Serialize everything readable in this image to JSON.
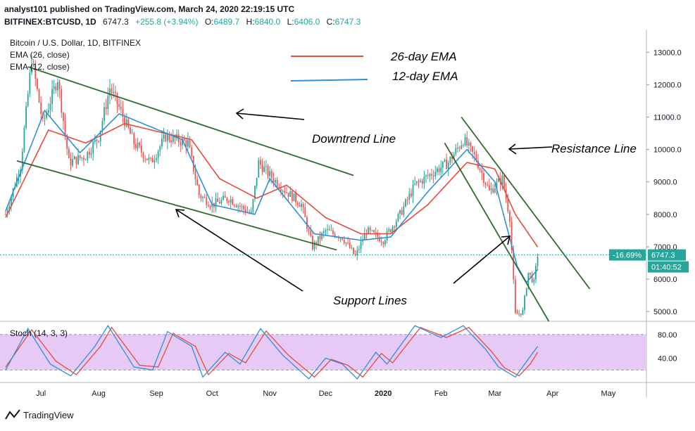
{
  "header": {
    "publisher_line": "analyst101 published on TradingView.com, March 24, 2020 22:19:15 UTC",
    "symbol": "BITFINEX:BTCUSD, 1D",
    "last_price": "6747.3",
    "change": "+255.8 (+3.94%)",
    "ohlc": [
      {
        "label": "O:",
        "value": "6489.7"
      },
      {
        "label": "H:",
        "value": "6840.0"
      },
      {
        "label": "L:",
        "value": "6406.0"
      },
      {
        "label": "C:",
        "value": "6747.3"
      }
    ]
  },
  "chart_data": {
    "type": "candlestick",
    "title": "Bitcoin / U.S. Dollar, 1D, BITFINEX",
    "indicators": [
      "EMA (26, close)",
      "EMA (12, close)"
    ],
    "x_ticks": [
      "Jul",
      "Aug",
      "Sep",
      "Oct",
      "Nov",
      "Dec",
      "2020",
      "Feb",
      "Mar",
      "Apr",
      "May"
    ],
    "y_ticks": [
      "13000.0",
      "12000.0",
      "11000.0",
      "10000.0",
      "9000.0",
      "8000.0",
      "7000.0",
      "6000.0",
      "5000.0"
    ],
    "ylim": [
      4700,
      13700
    ],
    "close_anchors": [
      {
        "date": "2019-06-12",
        "value": 8000
      },
      {
        "date": "2019-06-20",
        "value": 9500
      },
      {
        "date": "2019-06-26",
        "value": 12800
      },
      {
        "date": "2019-07-02",
        "value": 10800
      },
      {
        "date": "2019-07-10",
        "value": 12200
      },
      {
        "date": "2019-07-16",
        "value": 9600
      },
      {
        "date": "2019-07-25",
        "value": 9800
      },
      {
        "date": "2019-08-01",
        "value": 10400
      },
      {
        "date": "2019-08-07",
        "value": 11900
      },
      {
        "date": "2019-08-12",
        "value": 11300
      },
      {
        "date": "2019-08-20",
        "value": 10200
      },
      {
        "date": "2019-08-29",
        "value": 9600
      },
      {
        "date": "2019-09-06",
        "value": 10400
      },
      {
        "date": "2019-09-18",
        "value": 10200
      },
      {
        "date": "2019-09-24",
        "value": 8600
      },
      {
        "date": "2019-10-01",
        "value": 8300
      },
      {
        "date": "2019-10-10",
        "value": 8500
      },
      {
        "date": "2019-10-22",
        "value": 8000
      },
      {
        "date": "2019-10-26",
        "value": 9600
      },
      {
        "date": "2019-11-01",
        "value": 9200
      },
      {
        "date": "2019-11-08",
        "value": 8800
      },
      {
        "date": "2019-11-18",
        "value": 8300
      },
      {
        "date": "2019-11-24",
        "value": 7000
      },
      {
        "date": "2019-12-01",
        "value": 7500
      },
      {
        "date": "2019-12-10",
        "value": 7300
      },
      {
        "date": "2019-12-17",
        "value": 6700
      },
      {
        "date": "2019-12-23",
        "value": 7500
      },
      {
        "date": "2020-01-01",
        "value": 7200
      },
      {
        "date": "2020-01-10",
        "value": 8000
      },
      {
        "date": "2020-01-18",
        "value": 8900
      },
      {
        "date": "2020-01-28",
        "value": 9300
      },
      {
        "date": "2020-02-05",
        "value": 9600
      },
      {
        "date": "2020-02-13",
        "value": 10300
      },
      {
        "date": "2020-02-20",
        "value": 9700
      },
      {
        "date": "2020-02-27",
        "value": 8700
      },
      {
        "date": "2020-03-05",
        "value": 9100
      },
      {
        "date": "2020-03-09",
        "value": 7900
      },
      {
        "date": "2020-03-12",
        "value": 4900
      },
      {
        "date": "2020-03-16",
        "value": 5000
      },
      {
        "date": "2020-03-19",
        "value": 6200
      },
      {
        "date": "2020-03-22",
        "value": 5900
      },
      {
        "date": "2020-03-24",
        "value": 6747.3
      }
    ],
    "ema26_anchors": [
      {
        "date": "2019-06-12",
        "value": 7900
      },
      {
        "date": "2019-07-05",
        "value": 10600
      },
      {
        "date": "2019-07-25",
        "value": 10200
      },
      {
        "date": "2019-08-15",
        "value": 10800
      },
      {
        "date": "2019-09-20",
        "value": 10300
      },
      {
        "date": "2019-10-05",
        "value": 9100
      },
      {
        "date": "2019-10-25",
        "value": 8500
      },
      {
        "date": "2019-11-10",
        "value": 8900
      },
      {
        "date": "2019-12-01",
        "value": 7900
      },
      {
        "date": "2019-12-20",
        "value": 7400
      },
      {
        "date": "2020-01-05",
        "value": 7400
      },
      {
        "date": "2020-01-25",
        "value": 8300
      },
      {
        "date": "2020-02-15",
        "value": 9600
      },
      {
        "date": "2020-03-01",
        "value": 9400
      },
      {
        "date": "2020-03-12",
        "value": 8000
      },
      {
        "date": "2020-03-24",
        "value": 6990
      }
    ],
    "ema12_anchors": [
      {
        "date": "2019-06-12",
        "value": 8100
      },
      {
        "date": "2019-07-03",
        "value": 11200
      },
      {
        "date": "2019-07-22",
        "value": 9900
      },
      {
        "date": "2019-08-12",
        "value": 11100
      },
      {
        "date": "2019-09-15",
        "value": 10300
      },
      {
        "date": "2019-10-01",
        "value": 8300
      },
      {
        "date": "2019-10-24",
        "value": 8000
      },
      {
        "date": "2019-11-01",
        "value": 9100
      },
      {
        "date": "2019-11-25",
        "value": 7400
      },
      {
        "date": "2019-12-20",
        "value": 7200
      },
      {
        "date": "2020-01-05",
        "value": 7300
      },
      {
        "date": "2020-01-25",
        "value": 8700
      },
      {
        "date": "2020-02-15",
        "value": 10000
      },
      {
        "date": "2020-03-01",
        "value": 9000
      },
      {
        "date": "2020-03-13",
        "value": 6400
      },
      {
        "date": "2020-03-18",
        "value": 5900
      },
      {
        "date": "2020-03-24",
        "value": 6300
      }
    ],
    "trendlines": [
      {
        "name": "downtrend",
        "color": "#2e6b2e",
        "from": {
          "date": "2019-06-24",
          "value": 12550
        },
        "to": {
          "date": "2019-12-16",
          "value": 9200
        }
      },
      {
        "name": "support",
        "color": "#2e6b2e",
        "from": {
          "date": "2019-06-18",
          "value": 9650
        },
        "to": {
          "date": "2019-12-07",
          "value": 6900
        }
      },
      {
        "name": "channel-lower",
        "color": "#2e6b2e",
        "from": {
          "date": "2020-02-03",
          "value": 10200
        },
        "to": {
          "date": "2020-03-30",
          "value": 4700
        }
      },
      {
        "name": "resistance",
        "color": "#2e6b2e",
        "from": {
          "date": "2020-02-12",
          "value": 11000
        },
        "to": {
          "date": "2020-04-21",
          "value": 5700
        }
      }
    ],
    "stoch": {
      "label": "Stoch (14, 3, 3)",
      "y_ticks": [
        "80.00",
        "40.00"
      ],
      "ylim": [
        0,
        100
      ],
      "k_anchors": [
        {
          "date": "2019-06-12",
          "value": 20
        },
        {
          "date": "2019-06-24",
          "value": 90
        },
        {
          "date": "2019-07-06",
          "value": 30
        },
        {
          "date": "2019-07-17",
          "value": 10
        },
        {
          "date": "2019-07-30",
          "value": 60
        },
        {
          "date": "2019-08-06",
          "value": 95
        },
        {
          "date": "2019-08-20",
          "value": 25
        },
        {
          "date": "2019-08-30",
          "value": 20
        },
        {
          "date": "2019-09-07",
          "value": 85
        },
        {
          "date": "2019-09-20",
          "value": 60
        },
        {
          "date": "2019-09-26",
          "value": 8
        },
        {
          "date": "2019-10-08",
          "value": 50
        },
        {
          "date": "2019-10-16",
          "value": 30
        },
        {
          "date": "2019-10-27",
          "value": 90
        },
        {
          "date": "2019-11-08",
          "value": 45
        },
        {
          "date": "2019-11-22",
          "value": 5
        },
        {
          "date": "2019-12-01",
          "value": 40
        },
        {
          "date": "2019-12-10",
          "value": 30
        },
        {
          "date": "2019-12-18",
          "value": 5
        },
        {
          "date": "2019-12-28",
          "value": 50
        },
        {
          "date": "2020-01-03",
          "value": 30
        },
        {
          "date": "2020-01-18",
          "value": 95
        },
        {
          "date": "2020-02-01",
          "value": 75
        },
        {
          "date": "2020-02-13",
          "value": 95
        },
        {
          "date": "2020-02-25",
          "value": 55
        },
        {
          "date": "2020-03-03",
          "value": 25
        },
        {
          "date": "2020-03-12",
          "value": 8
        },
        {
          "date": "2020-03-17",
          "value": 30
        },
        {
          "date": "2020-03-24",
          "value": 60
        }
      ],
      "d_anchors": [
        {
          "date": "2019-06-12",
          "value": 25
        },
        {
          "date": "2019-06-26",
          "value": 88
        },
        {
          "date": "2019-07-09",
          "value": 35
        },
        {
          "date": "2019-07-20",
          "value": 12
        },
        {
          "date": "2019-08-02",
          "value": 60
        },
        {
          "date": "2019-08-08",
          "value": 92
        },
        {
          "date": "2019-08-23",
          "value": 28
        },
        {
          "date": "2019-09-02",
          "value": 25
        },
        {
          "date": "2019-09-10",
          "value": 82
        },
        {
          "date": "2019-09-22",
          "value": 60
        },
        {
          "date": "2019-09-29",
          "value": 12
        },
        {
          "date": "2019-10-10",
          "value": 48
        },
        {
          "date": "2019-10-19",
          "value": 32
        },
        {
          "date": "2019-10-30",
          "value": 86
        },
        {
          "date": "2019-11-11",
          "value": 45
        },
        {
          "date": "2019-11-25",
          "value": 8
        },
        {
          "date": "2019-12-04",
          "value": 38
        },
        {
          "date": "2019-12-13",
          "value": 28
        },
        {
          "date": "2019-12-21",
          "value": 8
        },
        {
          "date": "2019-12-31",
          "value": 48
        },
        {
          "date": "2020-01-06",
          "value": 32
        },
        {
          "date": "2020-01-21",
          "value": 92
        },
        {
          "date": "2020-02-04",
          "value": 75
        },
        {
          "date": "2020-02-16",
          "value": 92
        },
        {
          "date": "2020-02-28",
          "value": 52
        },
        {
          "date": "2020-03-06",
          "value": 24
        },
        {
          "date": "2020-03-14",
          "value": 10
        },
        {
          "date": "2020-03-20",
          "value": 30
        },
        {
          "date": "2020-03-24",
          "value": 50
        }
      ]
    },
    "price_tag": {
      "label": "6747.3",
      "color": "#26a69a"
    },
    "pct_tag": {
      "label": "-16.69%",
      "color": "#26a69a"
    },
    "timer_tag": {
      "label": "01:40:52",
      "color": "#26a69a"
    },
    "colors": {
      "up": "#26a69a",
      "down": "#ef5350",
      "ema26": "#e64a3c",
      "ema12": "#2f8fdb",
      "trendline": "#2e6b2e",
      "stoch_band": "#e6c9f5",
      "stoch_k": "#2f8fdb",
      "stoch_d": "#e64a3c"
    }
  },
  "annotations": {
    "legend_26": "26-day EMA",
    "legend_12": "12-day EMA",
    "downtrend": "Downtrend Line",
    "resistance": "Resistance Line",
    "support": "Support Lines"
  },
  "footer": {
    "brand": "TradingView"
  }
}
